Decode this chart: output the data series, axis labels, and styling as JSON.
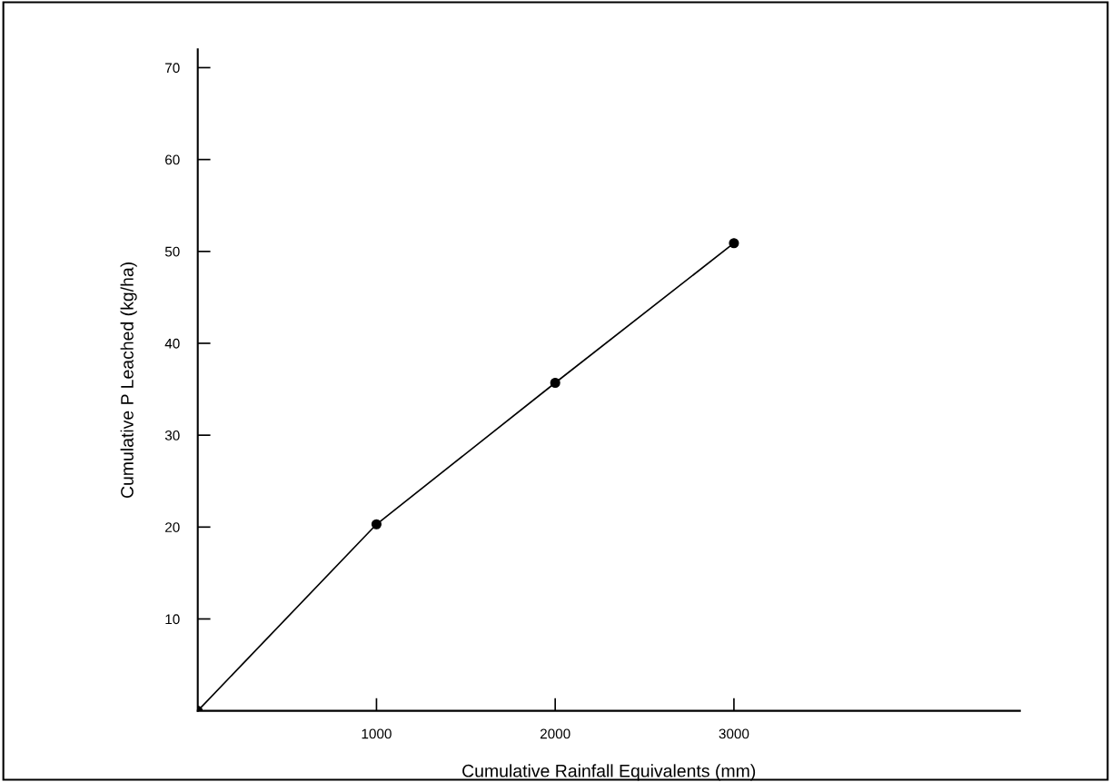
{
  "chart_data": {
    "type": "line",
    "xlabel": "Cumulative Rainfall Equivalents (mm)",
    "ylabel": "Cumulative P Leached (kg/ha)",
    "x": [
      0,
      1000,
      2000,
      3000
    ],
    "series": [
      {
        "color": "#000000",
        "values": [
          0,
          20.3,
          35.7,
          50.9
        ]
      }
    ],
    "marker": "circle",
    "line_style": "solid",
    "xlim": [
      0,
      4600
    ],
    "ylim": [
      0,
      72
    ],
    "xticks": [
      1000,
      2000,
      3000
    ],
    "yticks": [
      10,
      20,
      30,
      40,
      50,
      60,
      70
    ],
    "grid": false,
    "legend": false
  }
}
